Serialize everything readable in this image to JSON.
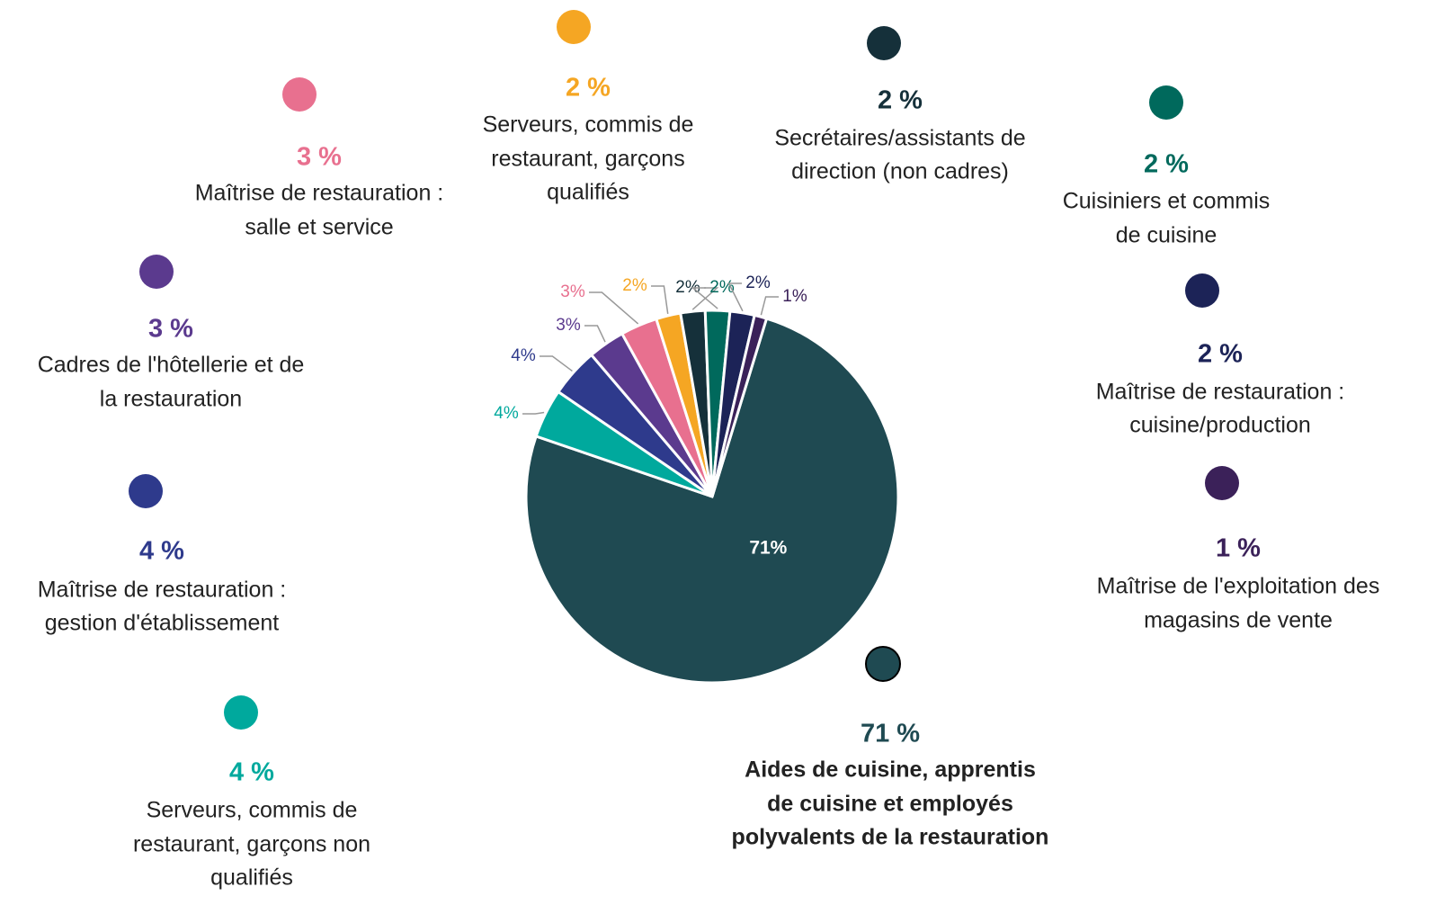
{
  "chart_data": {
    "type": "pie",
    "categories": [
      [
        "Aides de cuisine, apprentis",
        "de cuisine et employés",
        "polyvalents de la restauration"
      ],
      [
        "Serveurs, commis de",
        "restaurant, garçons non",
        "qualifiés"
      ],
      [
        "Maîtrise de restauration  :",
        "gestion d'établissement"
      ],
      [
        "Cadres de l'hôtellerie et de",
        "la restauration"
      ],
      [
        "Maîtrise de restauration :",
        "salle et service"
      ],
      [
        "Serveurs, commis de",
        "restaurant, garçons",
        "qualifiés"
      ],
      [
        "Secrétaires/assistants de",
        "direction (non cadres)"
      ],
      [
        "Cuisiniers et commis",
        "de cuisine"
      ],
      [
        "Maîtrise de restauration  :",
        "cuisine/production"
      ],
      [
        "Maîtrise de l'exploitation des",
        "magasins de vente"
      ]
    ],
    "values": [
      71,
      4,
      4,
      3,
      3,
      2,
      2,
      2,
      2,
      1
    ],
    "value_labels": [
      "71%",
      "4%",
      "4%",
      "3%",
      "3%",
      "2%",
      "2%",
      "2%",
      "2%",
      "1%"
    ],
    "callout_labels": [
      "71 %",
      "4 %",
      "4 %",
      "3 %",
      "3 %",
      "2 %",
      "2 %",
      "2 %",
      "2 %",
      "1 %"
    ],
    "colors": [
      "#1f4a52",
      "#00a99d",
      "#2e3a8c",
      "#5b3a8e",
      "#e8708f",
      "#f5a623",
      "#15303a",
      "#00695c",
      "#1c2357",
      "#3b2159"
    ]
  }
}
